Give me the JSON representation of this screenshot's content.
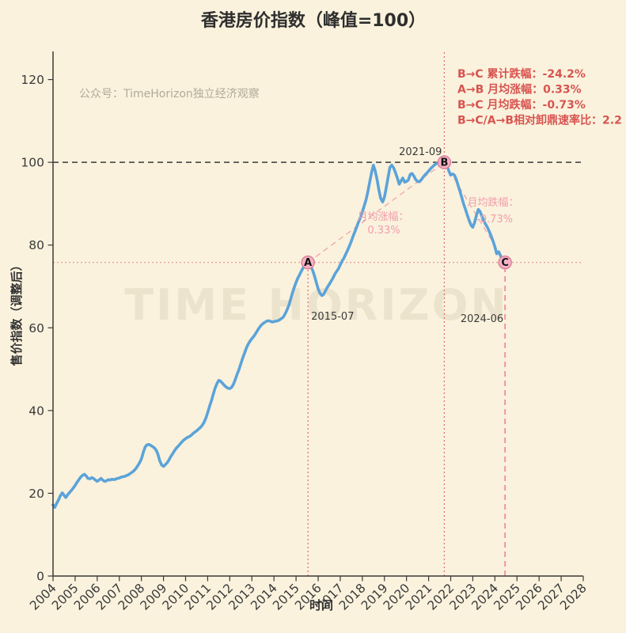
{
  "title": "香港房价指数（峰值=100）",
  "watermarks": {
    "account": "公众号：TimeHorizon独立经济观察",
    "brand": "TIME HORIZON"
  },
  "stats": {
    "lines": [
      "B→C 累计跌幅：-24.2%",
      "A→B 月均涨幅：0.33%",
      "B→C 月均跌幅：-0.73%",
      "B→C/A→B相对卸鼎速率比：2.2"
    ]
  },
  "chart_data": {
    "type": "line",
    "title": "香港房价指数（峰值=100）",
    "xlabel": "时间",
    "ylabel": "售价指数（调整后）",
    "xlim": [
      2004,
      2028
    ],
    "ylim": [
      0,
      126.8
    ],
    "x_ticks": [
      2004,
      2005,
      2006,
      2007,
      2008,
      2009,
      2010,
      2011,
      2012,
      2013,
      2014,
      2015,
      2016,
      2017,
      2018,
      2019,
      2020,
      2021,
      2022,
      2023,
      2024,
      2025,
      2026,
      2027,
      2028
    ],
    "y_ticks": [
      0,
      20,
      40,
      60,
      80,
      100,
      120
    ],
    "grid": false,
    "legend": "none",
    "series": [
      {
        "name": "香港房价指数",
        "points": [
          [
            2004.0,
            17.2
          ],
          [
            2004.08,
            16.6
          ],
          [
            2004.17,
            17.6
          ],
          [
            2004.25,
            18.4
          ],
          [
            2004.33,
            19.4
          ],
          [
            2004.42,
            20.1
          ],
          [
            2004.5,
            19.5
          ],
          [
            2004.58,
            19.0
          ],
          [
            2004.67,
            19.7
          ],
          [
            2004.75,
            20.2
          ],
          [
            2004.83,
            20.7
          ],
          [
            2004.92,
            21.3
          ],
          [
            2005.0,
            21.9
          ],
          [
            2005.08,
            22.6
          ],
          [
            2005.17,
            23.3
          ],
          [
            2005.25,
            23.9
          ],
          [
            2005.33,
            24.3
          ],
          [
            2005.42,
            24.6
          ],
          [
            2005.5,
            24.2
          ],
          [
            2005.58,
            23.6
          ],
          [
            2005.67,
            23.5
          ],
          [
            2005.75,
            23.8
          ],
          [
            2005.83,
            23.6
          ],
          [
            2005.92,
            23.2
          ],
          [
            2006.0,
            22.9
          ],
          [
            2006.08,
            23.2
          ],
          [
            2006.17,
            23.6
          ],
          [
            2006.25,
            23.2
          ],
          [
            2006.33,
            22.9
          ],
          [
            2006.42,
            23.0
          ],
          [
            2006.5,
            23.3
          ],
          [
            2006.58,
            23.2
          ],
          [
            2006.67,
            23.4
          ],
          [
            2006.75,
            23.3
          ],
          [
            2006.83,
            23.4
          ],
          [
            2006.92,
            23.6
          ],
          [
            2007.0,
            23.7
          ],
          [
            2007.08,
            23.9
          ],
          [
            2007.17,
            24.0
          ],
          [
            2007.25,
            24.1
          ],
          [
            2007.33,
            24.3
          ],
          [
            2007.42,
            24.5
          ],
          [
            2007.5,
            24.8
          ],
          [
            2007.58,
            25.1
          ],
          [
            2007.67,
            25.5
          ],
          [
            2007.75,
            26.0
          ],
          [
            2007.83,
            26.6
          ],
          [
            2007.92,
            27.4
          ],
          [
            2008.0,
            28.3
          ],
          [
            2008.08,
            29.8
          ],
          [
            2008.17,
            31.2
          ],
          [
            2008.25,
            31.7
          ],
          [
            2008.33,
            31.8
          ],
          [
            2008.42,
            31.6
          ],
          [
            2008.5,
            31.3
          ],
          [
            2008.58,
            31.0
          ],
          [
            2008.67,
            30.4
          ],
          [
            2008.75,
            29.4
          ],
          [
            2008.83,
            27.9
          ],
          [
            2008.92,
            26.8
          ],
          [
            2009.0,
            26.5
          ],
          [
            2009.08,
            26.9
          ],
          [
            2009.17,
            27.4
          ],
          [
            2009.25,
            28.1
          ],
          [
            2009.33,
            28.9
          ],
          [
            2009.42,
            29.6
          ],
          [
            2009.5,
            30.3
          ],
          [
            2009.58,
            30.9
          ],
          [
            2009.67,
            31.4
          ],
          [
            2009.75,
            31.9
          ],
          [
            2009.83,
            32.4
          ],
          [
            2009.92,
            32.9
          ],
          [
            2010.0,
            33.2
          ],
          [
            2010.08,
            33.5
          ],
          [
            2010.17,
            33.7
          ],
          [
            2010.25,
            34.0
          ],
          [
            2010.33,
            34.4
          ],
          [
            2010.42,
            34.8
          ],
          [
            2010.5,
            35.1
          ],
          [
            2010.58,
            35.5
          ],
          [
            2010.67,
            35.9
          ],
          [
            2010.75,
            36.4
          ],
          [
            2010.83,
            37.1
          ],
          [
            2010.92,
            38.2
          ],
          [
            2011.0,
            39.5
          ],
          [
            2011.08,
            40.9
          ],
          [
            2011.17,
            42.4
          ],
          [
            2011.25,
            43.9
          ],
          [
            2011.33,
            45.3
          ],
          [
            2011.42,
            46.5
          ],
          [
            2011.5,
            47.3
          ],
          [
            2011.58,
            47.1
          ],
          [
            2011.67,
            46.6
          ],
          [
            2011.75,
            46.1
          ],
          [
            2011.83,
            45.7
          ],
          [
            2011.92,
            45.4
          ],
          [
            2012.0,
            45.3
          ],
          [
            2012.08,
            45.6
          ],
          [
            2012.17,
            46.4
          ],
          [
            2012.25,
            47.5
          ],
          [
            2012.33,
            48.7
          ],
          [
            2012.42,
            50.0
          ],
          [
            2012.5,
            51.3
          ],
          [
            2012.58,
            52.6
          ],
          [
            2012.67,
            53.9
          ],
          [
            2012.75,
            55.1
          ],
          [
            2012.83,
            56.0
          ],
          [
            2012.92,
            56.8
          ],
          [
            2013.0,
            57.4
          ],
          [
            2013.08,
            57.9
          ],
          [
            2013.17,
            58.6
          ],
          [
            2013.25,
            59.3
          ],
          [
            2013.33,
            60.0
          ],
          [
            2013.42,
            60.6
          ],
          [
            2013.5,
            61.0
          ],
          [
            2013.58,
            61.3
          ],
          [
            2013.67,
            61.6
          ],
          [
            2013.75,
            61.7
          ],
          [
            2013.83,
            61.6
          ],
          [
            2013.92,
            61.4
          ],
          [
            2014.0,
            61.5
          ],
          [
            2014.08,
            61.6
          ],
          [
            2014.17,
            61.7
          ],
          [
            2014.25,
            61.9
          ],
          [
            2014.33,
            62.2
          ],
          [
            2014.42,
            62.6
          ],
          [
            2014.5,
            63.3
          ],
          [
            2014.58,
            64.2
          ],
          [
            2014.67,
            65.4
          ],
          [
            2014.75,
            66.8
          ],
          [
            2014.83,
            68.3
          ],
          [
            2014.92,
            69.8
          ],
          [
            2015.0,
            71.0
          ],
          [
            2015.08,
            72.0
          ],
          [
            2015.17,
            72.9
          ],
          [
            2015.25,
            73.8
          ],
          [
            2015.33,
            74.6
          ],
          [
            2015.42,
            75.2
          ],
          [
            2015.54,
            75.8
          ],
          [
            2015.67,
            74.9
          ],
          [
            2015.75,
            73.9
          ],
          [
            2015.83,
            72.6
          ],
          [
            2015.92,
            70.9
          ],
          [
            2016.0,
            69.4
          ],
          [
            2016.08,
            68.4
          ],
          [
            2016.17,
            67.8
          ],
          [
            2016.25,
            68.1
          ],
          [
            2016.33,
            68.9
          ],
          [
            2016.42,
            69.8
          ],
          [
            2016.5,
            70.5
          ],
          [
            2016.58,
            71.2
          ],
          [
            2016.67,
            72.0
          ],
          [
            2016.75,
            72.9
          ],
          [
            2016.83,
            73.6
          ],
          [
            2016.92,
            74.3
          ],
          [
            2017.0,
            75.2
          ],
          [
            2017.08,
            76.1
          ],
          [
            2017.17,
            76.9
          ],
          [
            2017.25,
            77.8
          ],
          [
            2017.33,
            78.7
          ],
          [
            2017.42,
            79.8
          ],
          [
            2017.5,
            80.9
          ],
          [
            2017.58,
            82.1
          ],
          [
            2017.67,
            83.3
          ],
          [
            2017.75,
            84.5
          ],
          [
            2017.83,
            85.6
          ],
          [
            2017.92,
            86.8
          ],
          [
            2018.0,
            88.0
          ],
          [
            2018.08,
            89.4
          ],
          [
            2018.17,
            91.0
          ],
          [
            2018.25,
            92.9
          ],
          [
            2018.33,
            95.1
          ],
          [
            2018.42,
            97.6
          ],
          [
            2018.5,
            99.3
          ],
          [
            2018.58,
            98.0
          ],
          [
            2018.67,
            95.8
          ],
          [
            2018.75,
            93.3
          ],
          [
            2018.83,
            91.3
          ],
          [
            2018.92,
            90.4
          ],
          [
            2019.0,
            91.6
          ],
          [
            2019.08,
            93.8
          ],
          [
            2019.17,
            96.5
          ],
          [
            2019.25,
            98.8
          ],
          [
            2019.33,
            99.3
          ],
          [
            2019.42,
            98.6
          ],
          [
            2019.5,
            97.5
          ],
          [
            2019.58,
            96.3
          ],
          [
            2019.67,
            94.7
          ],
          [
            2019.75,
            95.5
          ],
          [
            2019.83,
            96.2
          ],
          [
            2019.92,
            95.2
          ],
          [
            2020.0,
            95.4
          ],
          [
            2020.08,
            95.7
          ],
          [
            2020.17,
            97.1
          ],
          [
            2020.25,
            97.3
          ],
          [
            2020.33,
            96.7
          ],
          [
            2020.42,
            95.8
          ],
          [
            2020.5,
            95.4
          ],
          [
            2020.58,
            95.3
          ],
          [
            2020.67,
            95.8
          ],
          [
            2020.75,
            96.4
          ],
          [
            2020.83,
            96.9
          ],
          [
            2020.92,
            97.4
          ],
          [
            2021.0,
            97.9
          ],
          [
            2021.08,
            98.4
          ],
          [
            2021.17,
            98.9
          ],
          [
            2021.25,
            99.3
          ],
          [
            2021.33,
            99.6
          ],
          [
            2021.42,
            99.8
          ],
          [
            2021.5,
            99.9
          ],
          [
            2021.58,
            99.9
          ],
          [
            2021.71,
            100.0
          ],
          [
            2021.83,
            99.2
          ],
          [
            2021.92,
            97.8
          ],
          [
            2022.0,
            96.9
          ],
          [
            2022.08,
            97.2
          ],
          [
            2022.17,
            96.9
          ],
          [
            2022.25,
            95.9
          ],
          [
            2022.33,
            94.5
          ],
          [
            2022.42,
            93.0
          ],
          [
            2022.5,
            91.5
          ],
          [
            2022.58,
            90.0
          ],
          [
            2022.67,
            88.6
          ],
          [
            2022.75,
            87.3
          ],
          [
            2022.83,
            86.0
          ],
          [
            2022.92,
            84.8
          ],
          [
            2023.0,
            84.3
          ],
          [
            2023.08,
            85.4
          ],
          [
            2023.17,
            87.3
          ],
          [
            2023.25,
            88.6
          ],
          [
            2023.33,
            88.1
          ],
          [
            2023.42,
            86.9
          ],
          [
            2023.5,
            85.9
          ],
          [
            2023.58,
            85.0
          ],
          [
            2023.67,
            84.2
          ],
          [
            2023.75,
            83.2
          ],
          [
            2023.83,
            82.2
          ],
          [
            2023.92,
            80.9
          ],
          [
            2024.0,
            79.6
          ],
          [
            2024.08,
            77.9
          ],
          [
            2024.17,
            78.4
          ],
          [
            2024.25,
            77.5
          ],
          [
            2024.33,
            76.4
          ],
          [
            2024.46,
            75.8
          ]
        ]
      }
    ],
    "key_points": [
      {
        "id": "a",
        "label": "A",
        "date": "2015-07",
        "x": 2015.54,
        "y": 75.8
      },
      {
        "id": "b",
        "label": "B",
        "date": "2021-09",
        "x": 2021.71,
        "y": 100.0
      },
      {
        "id": "c",
        "label": "C",
        "date": "2024-06",
        "x": 2024.46,
        "y": 75.8
      }
    ],
    "reference_lines": [
      {
        "id": "peak-100-hline",
        "orient": "h",
        "value": 100,
        "from": 2004,
        "to": 2028,
        "style": "dashed",
        "color": "#3a3a3a",
        "width": 1.6
      },
      {
        "id": "level-758-hline",
        "orient": "h",
        "value": 75.8,
        "from": 2004,
        "to": 2028,
        "style": "dotted",
        "color": "#e89090",
        "width": 1.2
      },
      {
        "id": "event-a-vline",
        "orient": "v",
        "value": 2015.54,
        "from": 0,
        "to": 75.8,
        "style": "dotted",
        "color": "#e06c6c",
        "width": 1.2
      },
      {
        "id": "event-b-vline",
        "orient": "v",
        "value": 2021.71,
        "from": 0,
        "to": 126.8,
        "style": "dotted",
        "color": "#e06c6c",
        "width": 1.2
      },
      {
        "id": "event-c-vline",
        "orient": "v",
        "value": 2024.46,
        "from": 0,
        "to": 75.8,
        "style": "dashed",
        "color": "#f08ca0",
        "width": 1.8
      }
    ],
    "trend_lines": [
      {
        "id": "trend-a-b",
        "from": "a",
        "to": "b",
        "style": "dashed",
        "color": "#f2a3ad",
        "width": 1.3
      },
      {
        "id": "trend-b-c",
        "from": "b",
        "to": "c",
        "style": "dashed",
        "color": "#f2a3ad",
        "width": 1.3
      }
    ],
    "annotations": {
      "monthly_rise": {
        "line1": "月均涨幅：",
        "line2": "0.33%"
      },
      "monthly_fall": {
        "line1": "月均跌幅：",
        "line2": "-0.73%"
      }
    },
    "colors": {
      "background": "#faf2dd",
      "line": "#5ba3d9",
      "marker_fill": "#f5b3c6",
      "marker_edge": "#dd7f9b",
      "axis": "#3a3a3a",
      "stats_red": "#d85450",
      "annotation_pink": "#f29cab",
      "watermark_small": "#b1aa99",
      "watermark_big": "#ece3cd"
    }
  }
}
